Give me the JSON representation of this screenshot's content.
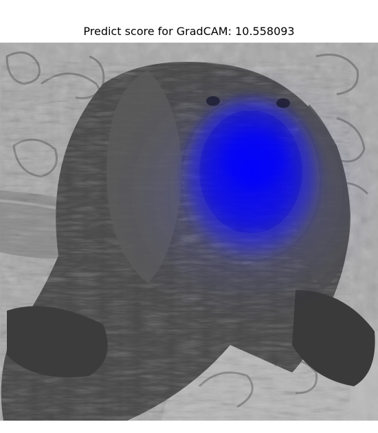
{
  "figure": {
    "title": "Predict score for GradCAM: 10.558093"
  },
  "image": {
    "subject": "dog-photo",
    "mode": "grayscale",
    "overlay_color": "#0000ff"
  }
}
